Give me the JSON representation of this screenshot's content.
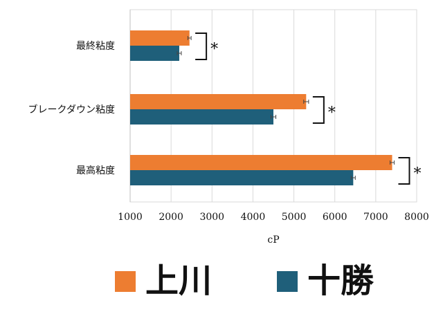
{
  "chart_data": {
    "type": "bar",
    "orientation": "horizontal",
    "categories": [
      "最終粘度",
      "ブレークダウン粘度",
      "最高粘度"
    ],
    "series": [
      {
        "name": "上川",
        "color": "#ED7D31",
        "values": [
          2450,
          5300,
          7400
        ],
        "errors": [
          40,
          60,
          50
        ]
      },
      {
        "name": "十勝",
        "color": "#1F5F7A",
        "values": [
          2200,
          4500,
          6450
        ],
        "errors": [
          50,
          60,
          50
        ]
      }
    ],
    "xlabel": "cP",
    "xlim": [
      1000,
      8000
    ],
    "xticks": [
      1000,
      2000,
      3000,
      4000,
      5000,
      6000,
      7000,
      8000
    ],
    "grid": true,
    "legend_position": "bottom",
    "significance": [
      "*",
      "*",
      "*"
    ]
  }
}
